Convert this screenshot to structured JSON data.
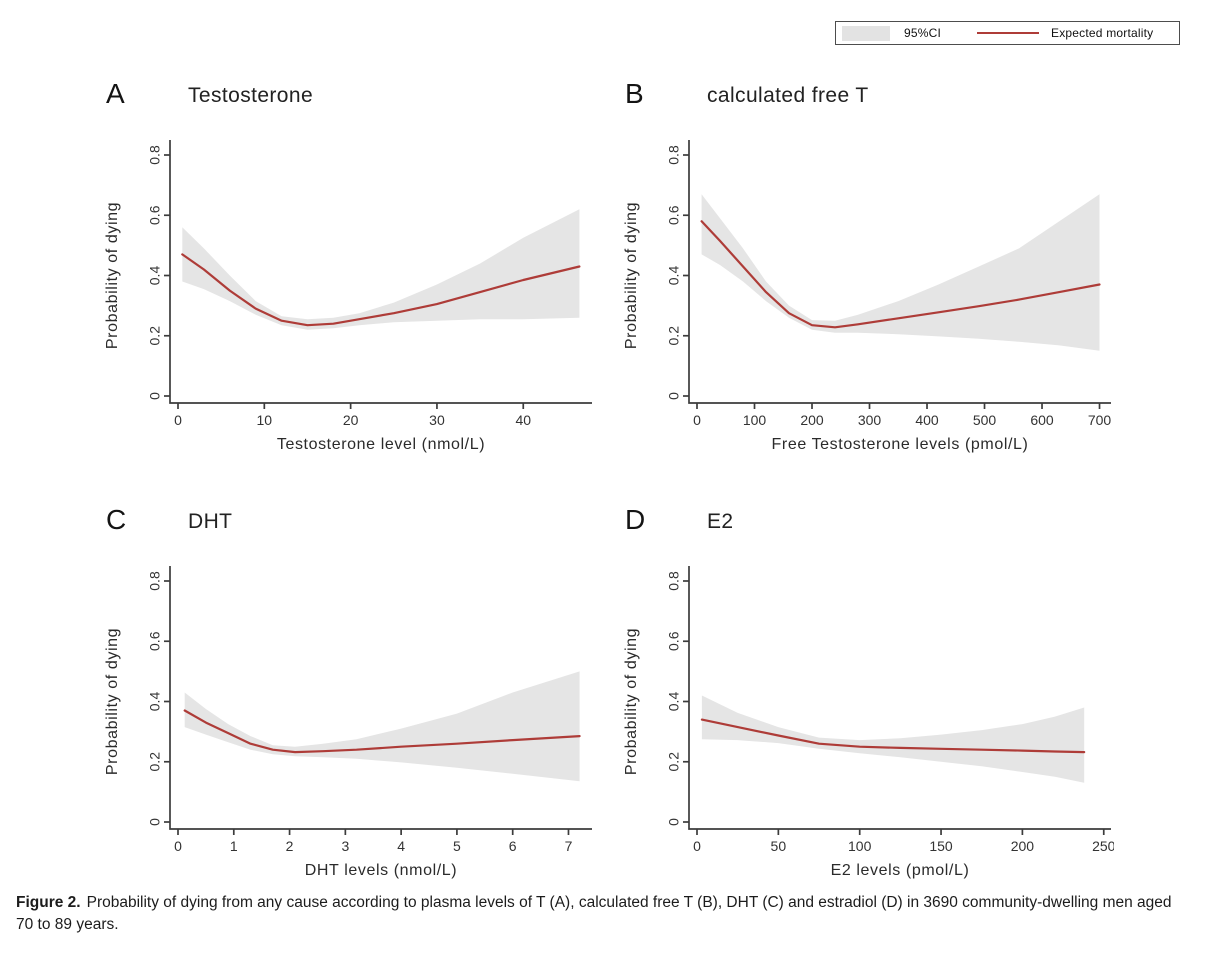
{
  "legend": {
    "ci_label": "95%CI",
    "line_label": "Expected mortality"
  },
  "colors": {
    "line": "#ae3c38",
    "band": "#e5e5e5",
    "axis": "#3c3c3c",
    "tick_text": "#333333",
    "label_text": "#2b2b2b"
  },
  "caption": {
    "label": "Figure 2.",
    "text": "Probability of dying from any cause according to plasma levels of T (A), calculated free T (B), DHT (C) and estradiol (D) in 3690 community-dwelling men aged 70 to 89 years."
  },
  "chart_data": [
    {
      "type": "line",
      "panel": "A",
      "title": "Testosterone",
      "xlabel": "Testosterone level (nmol/L)",
      "ylabel": "Probability of dying",
      "legend_series": [
        "95%CI",
        "Expected mortality"
      ],
      "xlim": [
        0,
        47.5
      ],
      "ylim": [
        0,
        0.8
      ],
      "x_ticks": [
        0,
        10,
        20,
        30,
        40
      ],
      "y_ticks": [
        0,
        0.2,
        0.4,
        0.6,
        0.8
      ],
      "x": [
        0.5,
        3,
        6,
        9,
        12,
        15,
        18,
        21,
        25,
        30,
        35,
        40,
        46.5
      ],
      "mean": [
        0.47,
        0.42,
        0.35,
        0.29,
        0.25,
        0.235,
        0.24,
        0.255,
        0.275,
        0.305,
        0.345,
        0.385,
        0.43
      ],
      "ci_lower": [
        0.38,
        0.355,
        0.315,
        0.27,
        0.235,
        0.22,
        0.225,
        0.235,
        0.245,
        0.25,
        0.255,
        0.255,
        0.26
      ],
      "ci_upper": [
        0.56,
        0.49,
        0.4,
        0.315,
        0.265,
        0.255,
        0.26,
        0.275,
        0.31,
        0.37,
        0.44,
        0.525,
        0.62
      ]
    },
    {
      "type": "line",
      "panel": "B",
      "title": "calculated free T",
      "xlabel": "Free Testosterone levels (pmol/L)",
      "ylabel": "Probability of dying",
      "legend_series": [
        "95%CI",
        "Expected mortality"
      ],
      "xlim": [
        0,
        713
      ],
      "ylim": [
        0,
        0.8
      ],
      "x_ticks": [
        0,
        100,
        200,
        300,
        400,
        500,
        600,
        700
      ],
      "y_ticks": [
        0,
        0.2,
        0.4,
        0.6,
        0.8
      ],
      "x": [
        8,
        40,
        80,
        120,
        160,
        200,
        240,
        280,
        350,
        420,
        490,
        560,
        630,
        700
      ],
      "mean": [
        0.58,
        0.515,
        0.43,
        0.345,
        0.275,
        0.235,
        0.228,
        0.238,
        0.258,
        0.278,
        0.298,
        0.32,
        0.345,
        0.37
      ],
      "ci_lower": [
        0.47,
        0.435,
        0.38,
        0.315,
        0.26,
        0.22,
        0.21,
        0.21,
        0.205,
        0.198,
        0.19,
        0.18,
        0.168,
        0.15
      ],
      "ci_upper": [
        0.67,
        0.59,
        0.49,
        0.38,
        0.3,
        0.252,
        0.25,
        0.27,
        0.315,
        0.37,
        0.43,
        0.49,
        0.58,
        0.67
      ]
    },
    {
      "type": "line",
      "panel": "C",
      "title": "DHT",
      "xlabel": "DHT levels (nmol/L)",
      "ylabel": "Probability of dying",
      "legend_series": [
        "95%CI",
        "Expected mortality"
      ],
      "xlim": [
        0,
        7.35
      ],
      "ylim": [
        0,
        0.8
      ],
      "x_ticks": [
        0,
        1,
        2,
        3,
        4,
        5,
        6,
        7
      ],
      "y_ticks": [
        0,
        0.2,
        0.4,
        0.6,
        0.8
      ],
      "x": [
        0.12,
        0.5,
        0.9,
        1.3,
        1.7,
        2.1,
        2.6,
        3.2,
        4,
        5,
        6,
        7.2
      ],
      "mean": [
        0.37,
        0.33,
        0.295,
        0.26,
        0.24,
        0.232,
        0.235,
        0.24,
        0.25,
        0.26,
        0.272,
        0.285
      ],
      "ci_lower": [
        0.315,
        0.29,
        0.265,
        0.24,
        0.225,
        0.218,
        0.215,
        0.21,
        0.198,
        0.18,
        0.16,
        0.135
      ],
      "ci_upper": [
        0.43,
        0.375,
        0.325,
        0.285,
        0.255,
        0.25,
        0.26,
        0.275,
        0.31,
        0.36,
        0.43,
        0.5
      ]
    },
    {
      "type": "line",
      "panel": "D",
      "title": "E2",
      "xlabel": "E2 levels (pmol/L)",
      "ylabel": "Probability of dying",
      "legend_series": [
        "95%CI",
        "Expected mortality"
      ],
      "xlim": [
        0,
        252
      ],
      "ylim": [
        0,
        0.8
      ],
      "x_ticks": [
        0,
        50,
        100,
        150,
        200,
        250
      ],
      "y_ticks": [
        0,
        0.2,
        0.4,
        0.6,
        0.8
      ],
      "x": [
        3,
        25,
        50,
        75,
        100,
        125,
        150,
        175,
        200,
        220,
        238
      ],
      "mean": [
        0.34,
        0.315,
        0.287,
        0.26,
        0.25,
        0.246,
        0.243,
        0.24,
        0.237,
        0.234,
        0.232
      ],
      "ci_lower": [
        0.275,
        0.272,
        0.262,
        0.243,
        0.228,
        0.215,
        0.2,
        0.185,
        0.166,
        0.15,
        0.13
      ],
      "ci_upper": [
        0.42,
        0.362,
        0.315,
        0.28,
        0.272,
        0.278,
        0.29,
        0.305,
        0.325,
        0.35,
        0.38
      ]
    }
  ]
}
